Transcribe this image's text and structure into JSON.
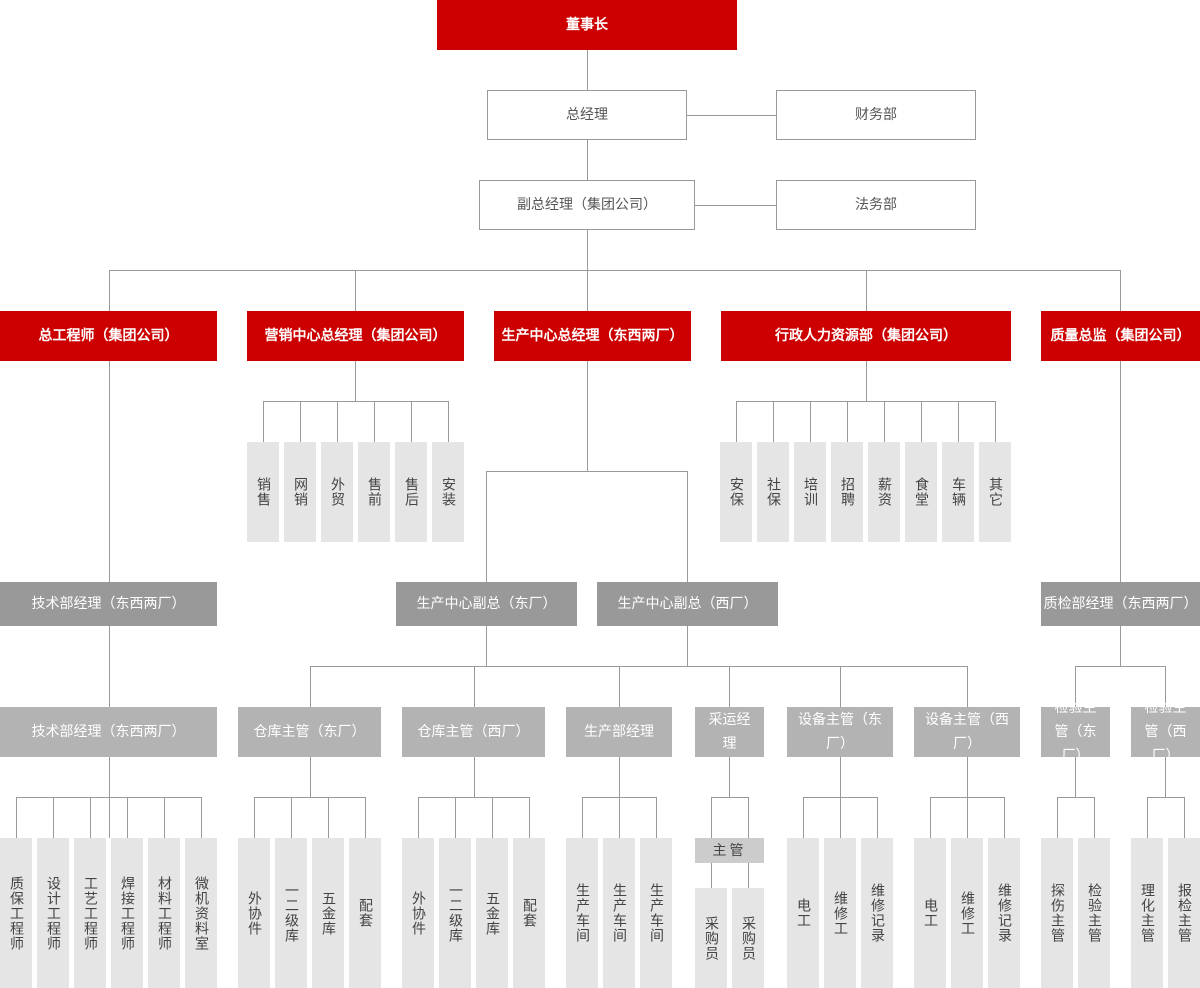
{
  "colors": {
    "red": "#cc0000",
    "line": "#999999",
    "dark": "#999999",
    "mid": "#b3b3b3",
    "leaf": "#e5e5e5"
  },
  "top": {
    "chairman": "董事长",
    "general_manager": "总经理",
    "finance": "财务部",
    "deputy_gm": "副总经理（集团公司）",
    "legal": "法务部"
  },
  "divisions": [
    "总工程师（集团公司）",
    "营销中心总经理（集团公司）",
    "生产中心总经理（东西两厂）",
    "行政人力资源部（集团公司）",
    "质量总监（集团公司）"
  ],
  "sales_units": [
    "销售",
    "网销",
    "外贸",
    "售前",
    "售后",
    "安装"
  ],
  "admin_units": [
    "安保",
    "社保",
    "培训",
    "招聘",
    "薪资",
    "食堂",
    "车辆",
    "其它"
  ],
  "level3": [
    "技术部经理（东西两厂）",
    "生产中心副总（东厂）",
    "生产中心副总（西厂）",
    "质检部经理（东西两厂）"
  ],
  "level4": [
    "技术部经理（东西两厂）",
    "仓库主管（东厂）",
    "仓库主管（西厂）",
    "生产部经理",
    "采运经理",
    "设备主管（东厂）",
    "设备主管（西厂）",
    "检验主管（东厂）",
    "检验主管（西厂）"
  ],
  "purchase_supervisor": "主管",
  "leaves": {
    "tech": [
      "质保工程师",
      "设计工程师",
      "工艺工程师",
      "焊接工程师",
      "材料工程师",
      "微机资料室"
    ],
    "warehouse_east": [
      "外协件",
      "一二级库",
      "五金库",
      "配套"
    ],
    "warehouse_west": [
      "外协件",
      "一二级库",
      "五金库",
      "配套"
    ],
    "production": [
      "生产车间",
      "生产车间",
      "生产车间"
    ],
    "purchasing": [
      "采购员",
      "采购员"
    ],
    "equipment_east": [
      "电工",
      "维修工",
      "维修记录"
    ],
    "equipment_west": [
      "电工",
      "维修工",
      "维修记录"
    ],
    "inspection_east": [
      "探伤主管",
      "检验主管"
    ],
    "inspection_west": [
      "理化主管",
      "报检主管"
    ]
  }
}
